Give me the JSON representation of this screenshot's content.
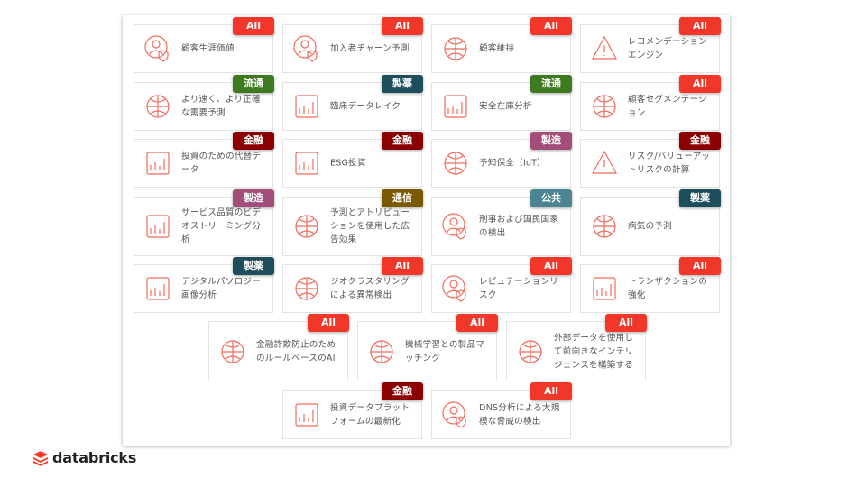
{
  "brand": {
    "name": "databricks",
    "logo_color": "#ff3621"
  },
  "icon_color": "#f26b5b",
  "badge_colors": {
    "All": "#f0372a",
    "流通": "#3e7a1f",
    "製薬": "#1e4d5c",
    "金融": "#8b0000",
    "製造": "#a34d7a",
    "通信": "#7a5a00",
    "公共": "#4a8591"
  },
  "cards": [
    {
      "title": "顧客生涯価値",
      "badge": "All",
      "icon": "customer-shield-icon"
    },
    {
      "title": "加入者チャーン予測",
      "badge": "All",
      "icon": "subscriber-churn-icon"
    },
    {
      "title": "顧客維持",
      "badge": "All",
      "icon": "customer-retention-icon"
    },
    {
      "title": "レコメンデーションエンジン",
      "badge": "All",
      "icon": "recommendation-engine-icon"
    },
    {
      "title": "より速く、より正確な需要予測",
      "badge": "流通",
      "icon": "demand-forecast-icon"
    },
    {
      "title": "臨床データレイク",
      "badge": "製薬",
      "icon": "data-lake-icon"
    },
    {
      "title": "安全在庫分析",
      "badge": "流通",
      "icon": "inventory-analysis-icon"
    },
    {
      "title": "顧客セグメンテーション",
      "badge": "All",
      "icon": "segmentation-icon"
    },
    {
      "title": "投資のための代替データ",
      "badge": "金融",
      "icon": "alt-data-chart-icon"
    },
    {
      "title": "ESG投資",
      "badge": "金融",
      "icon": "bar-chart-icon"
    },
    {
      "title": "予知保全（IoT）",
      "badge": "製造",
      "icon": "gear-wrench-icon"
    },
    {
      "title": "リスク/バリューアットリスクの計算",
      "badge": "金融",
      "icon": "warning-icon"
    },
    {
      "title": "サービス品質のビデオストリーミング分析",
      "badge": "製造",
      "icon": "video-tv-icon"
    },
    {
      "title": "予測とアトリビューションを使用した広告効果",
      "badge": "通信",
      "icon": "globe-icon"
    },
    {
      "title": "刑事および国民国家の検出",
      "badge": "公共",
      "icon": "hacker-icon"
    },
    {
      "title": "病気の予測",
      "badge": "製薬",
      "icon": "stethoscope-icon"
    },
    {
      "title": "デジタルパソロジー画像分析",
      "badge": "製薬",
      "icon": "pathology-image-icon"
    },
    {
      "title": "ジオクラスタリングによる異常検出",
      "badge": "All",
      "icon": "geo-cluster-icon"
    },
    {
      "title": "レピュテーションリスク",
      "badge": "All",
      "icon": "medal-icon"
    },
    {
      "title": "トランザクションの強化",
      "badge": "All",
      "icon": "credit-card-receipt-icon"
    },
    {
      "title": "金融詐欺防止のためのルールベースのAI",
      "badge": "All",
      "icon": "rule-flow-icon"
    },
    {
      "title": "機械学習との製品マッチング",
      "badge": "All",
      "icon": "ml-circuit-icon"
    },
    {
      "title": "外部データを使用して前向きなインテリジェンスを構築する",
      "badge": "All",
      "icon": "cloud-data-icon"
    },
    {
      "title": "投資データプラットフォームの最新化",
      "badge": "金融",
      "icon": "line-chart-window-icon"
    },
    {
      "title": "DNS分析による大規模な脅威の検出",
      "badge": "All",
      "icon": "hacker-laptop-icon"
    }
  ]
}
